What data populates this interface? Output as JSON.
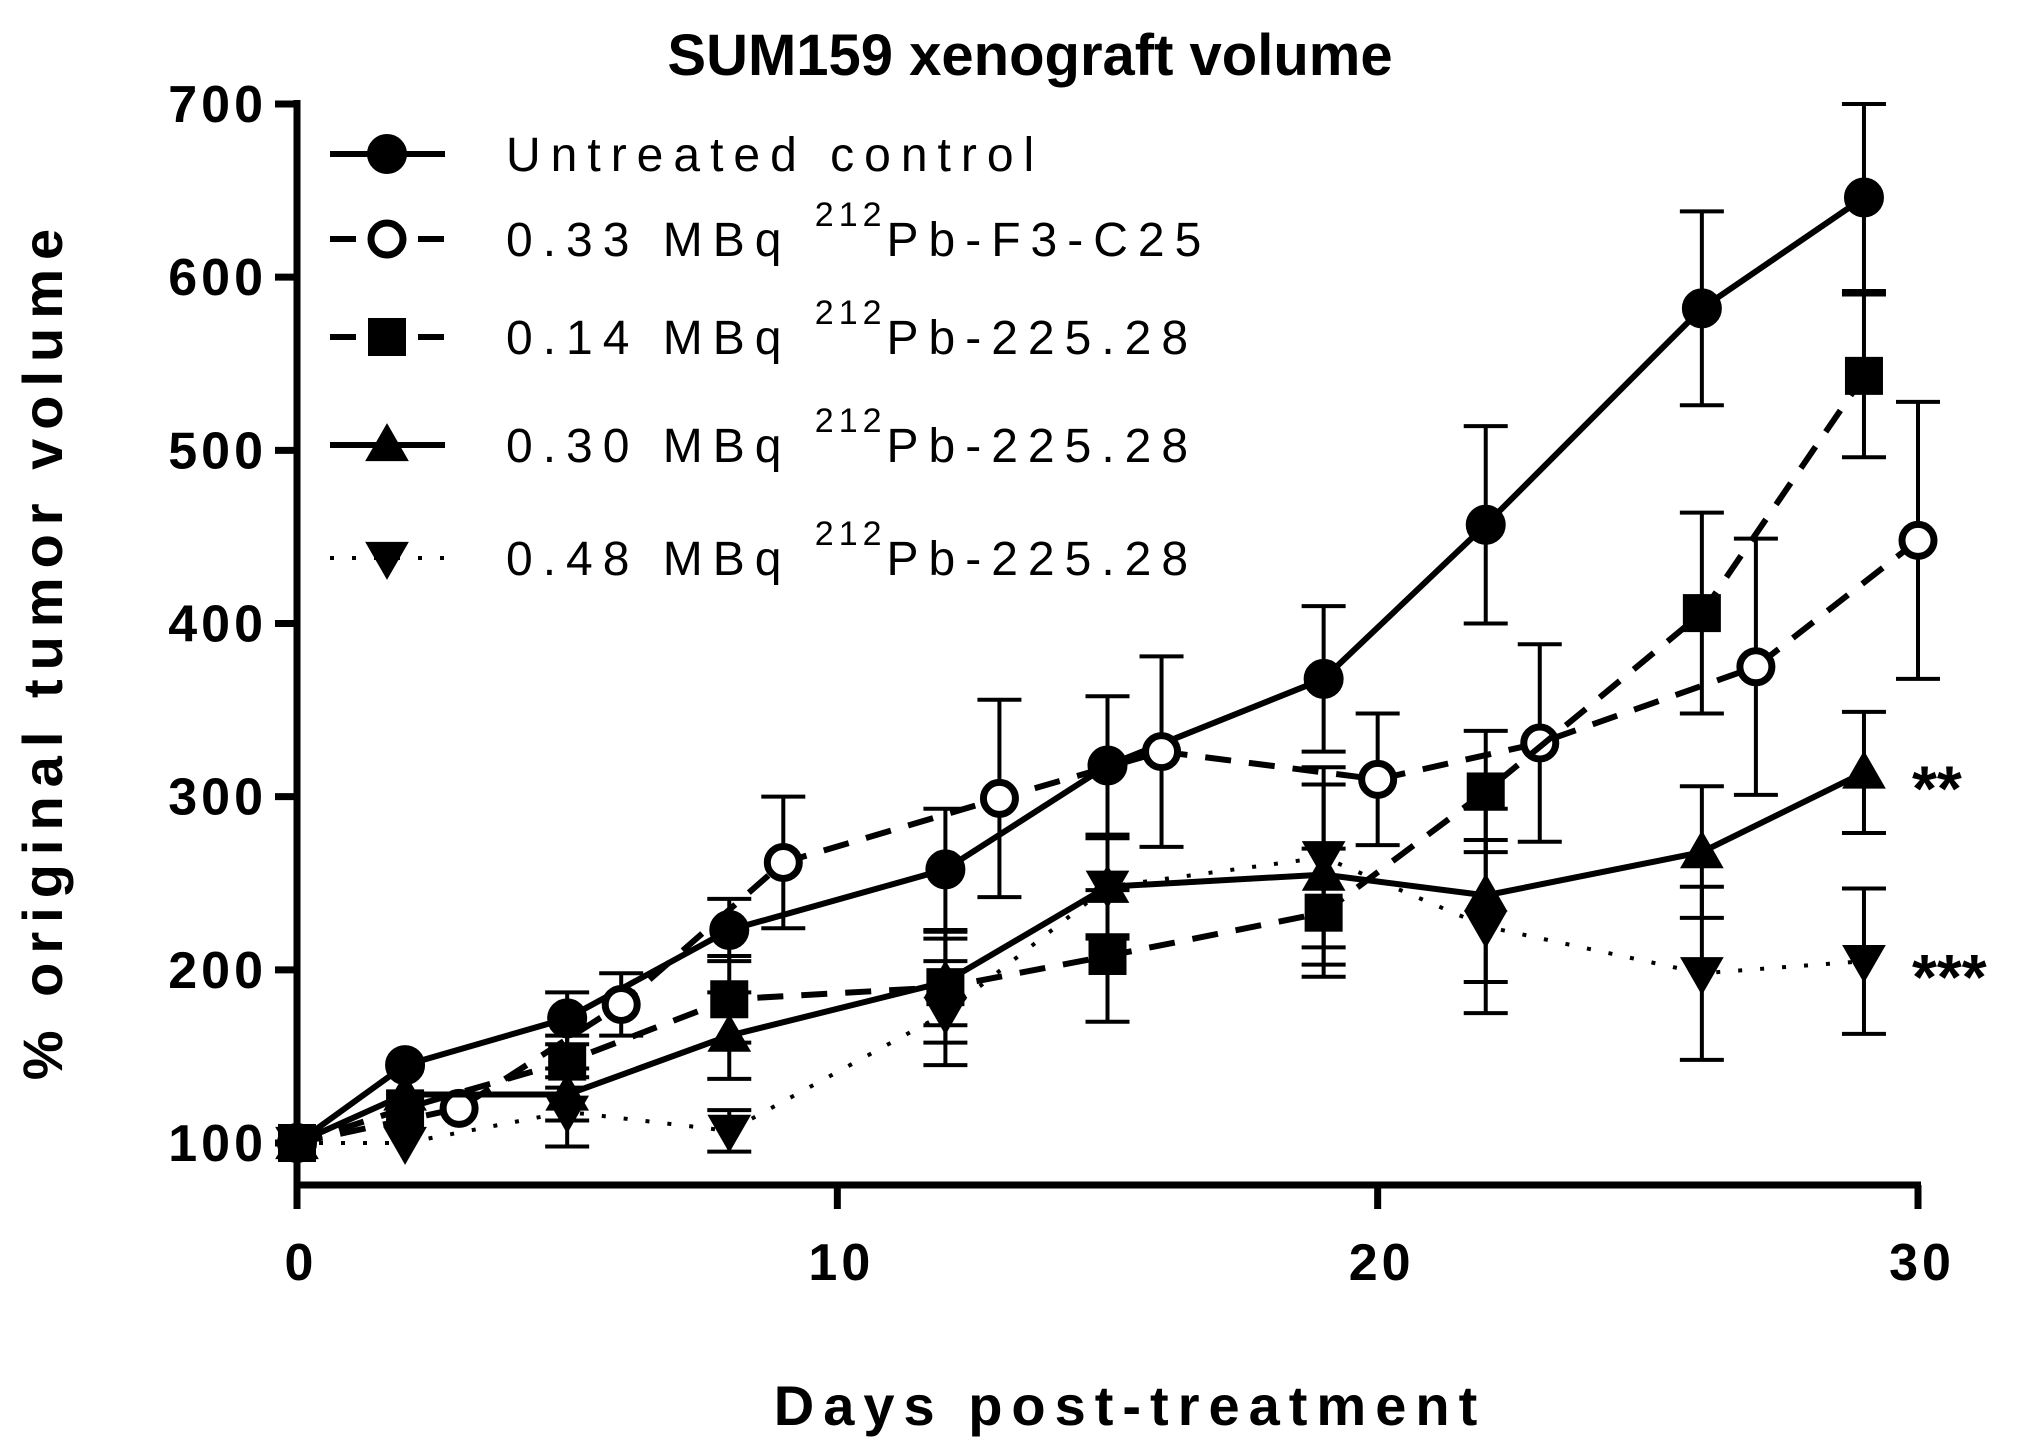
{
  "chart_data": {
    "type": "line",
    "title": "SUM159 xenograft volume",
    "xlabel": "Days post-treatment",
    "ylabel": "% original tumor volume",
    "xlim": [
      0,
      30
    ],
    "ylim": [
      100,
      700
    ],
    "xticks": [
      0,
      10,
      20,
      30
    ],
    "yticks": [
      100,
      200,
      300,
      400,
      500,
      600,
      700
    ],
    "legend_position": "top-left",
    "series": [
      {
        "name": "Untreated control",
        "label_prefix": "Untreated control",
        "label_sup": "",
        "label_suffix": "",
        "marker": "filled-circle",
        "line": "solid",
        "x": [
          0,
          2,
          5,
          8,
          12,
          15,
          19,
          22,
          26,
          29
        ],
        "y": [
          100,
          145,
          172,
          223,
          258,
          318,
          368,
          457,
          582,
          646
        ],
        "err": [
          0,
          0,
          15,
          18,
          35,
          40,
          42,
          57,
          56,
          54
        ]
      },
      {
        "name": "0.33 MBq 212Pb-F3-C25",
        "label_prefix": "0.33 MBq ",
        "label_sup": "212",
        "label_suffix": "Pb-F3-C25",
        "marker": "open-circle",
        "line": "dashed",
        "x": [
          0,
          3,
          6,
          9,
          13,
          16,
          20,
          23,
          27,
          30
        ],
        "y": [
          100,
          120,
          180,
          262,
          299,
          326,
          310,
          331,
          375,
          448
        ],
        "err": [
          0,
          0,
          18,
          38,
          57,
          55,
          38,
          57,
          74,
          80
        ]
      },
      {
        "name": "0.14 MBq 212Pb-225.28",
        "label_prefix": "0.14 MBq ",
        "label_sup": "212",
        "label_suffix": "Pb-225.28",
        "marker": "filled-square",
        "line": "dashed",
        "x": [
          0,
          2,
          5,
          8,
          12,
          15,
          19,
          22,
          26,
          29
        ],
        "y": [
          100,
          120,
          147,
          183,
          190,
          208,
          233,
          303,
          406,
          543
        ],
        "err": [
          0,
          0,
          15,
          25,
          32,
          38,
          37,
          35,
          58,
          47
        ]
      },
      {
        "name": "0.30 MBq 212Pb-225.28",
        "label_prefix": "0.30 MBq ",
        "label_sup": "212",
        "label_suffix": "Pb-225.28",
        "marker": "filled-triangle-up",
        "line": "solid",
        "x": [
          0,
          2,
          5,
          8,
          12,
          15,
          19,
          22,
          26,
          29
        ],
        "y": [
          100,
          128,
          128,
          162,
          193,
          248,
          255,
          243,
          268,
          314
        ],
        "err": [
          0,
          0,
          15,
          25,
          25,
          28,
          52,
          50,
          38,
          35
        ]
      },
      {
        "name": "0.48 MBq 212Pb-225.28",
        "label_prefix": "0.48 MBq ",
        "label_sup": "212",
        "label_suffix": "Pb-225.28",
        "marker": "filled-triangle-down",
        "line": "dotted",
        "x": [
          0,
          2,
          5,
          8,
          12,
          15,
          19,
          22,
          26,
          29
        ],
        "y": [
          100,
          100,
          118,
          107,
          175,
          248,
          265,
          225,
          198,
          205
        ],
        "err": [
          0,
          0,
          20,
          12,
          30,
          30,
          52,
          50,
          50,
          42
        ]
      }
    ],
    "annotations": [
      {
        "text": "**",
        "x": 29,
        "y": 314
      },
      {
        "text": "***",
        "x": 29,
        "y": 205
      }
    ]
  }
}
